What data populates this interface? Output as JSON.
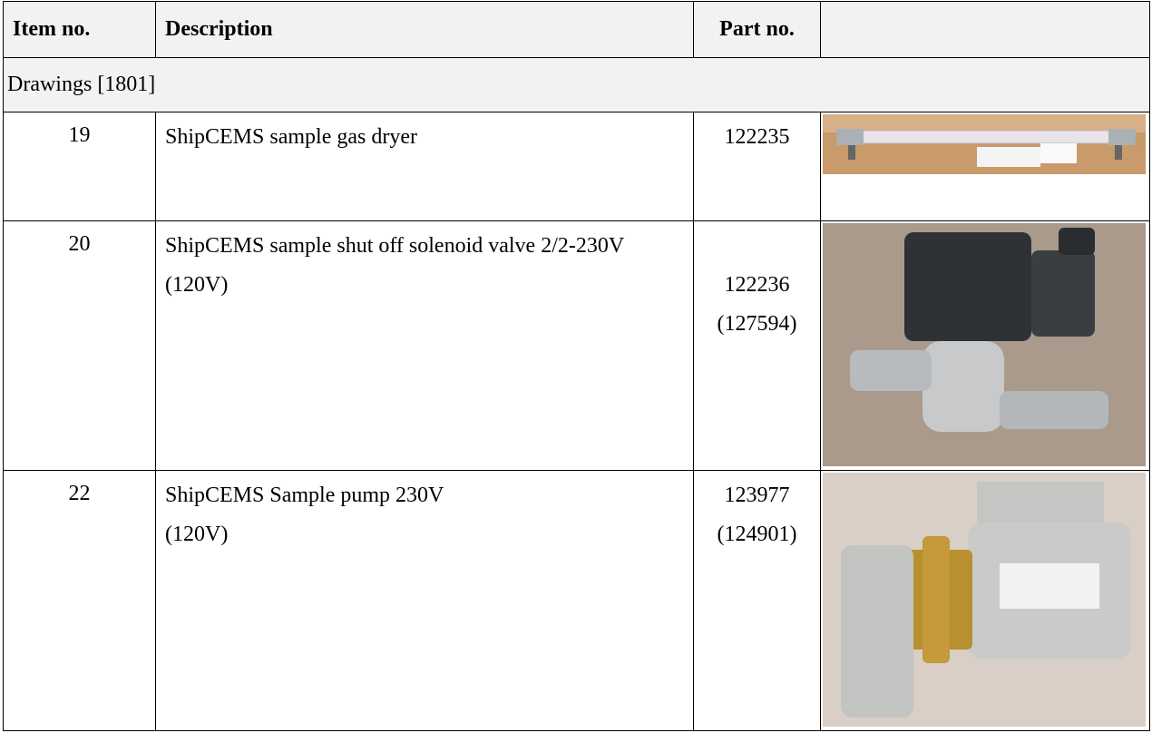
{
  "header": {
    "item": "Item no.",
    "description": "Description",
    "part": "Part no."
  },
  "section": "Drawings [1801]",
  "rows": [
    {
      "item": "19",
      "description": [
        "ShipCEMS sample gas dryer"
      ],
      "part": [
        "122235"
      ]
    },
    {
      "item": "20",
      "description": [
        "ShipCEMS sample shut off solenoid valve 2/2-230V",
        "(120V)"
      ],
      "part": [
        "122236",
        "(127594)"
      ]
    },
    {
      "item": "22",
      "description": [
        "ShipCEMS Sample pump 230V",
        "(120V)"
      ],
      "part": [
        "123977",
        "(124901)"
      ]
    }
  ]
}
